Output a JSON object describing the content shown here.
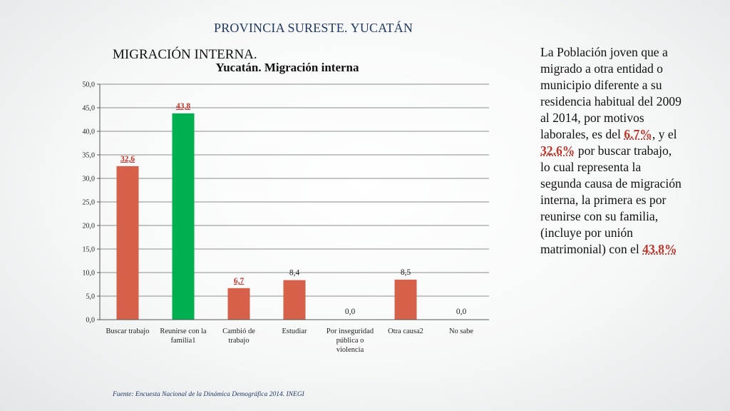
{
  "header": {
    "title": "PROVINCIA SURESTE. YUCATÁN"
  },
  "section": {
    "title": "MIGRACIÓN INTERNA."
  },
  "side_text": {
    "part1": "La Población joven que a migrado a otra entidad o municipio diferente a su residencia habitual del 2009 al 2014,  por motivos laborales, es del ",
    "hl1": "6.7%",
    "part2": ", y el ",
    "hl2": "32.6%",
    "part3": " por buscar trabajo, lo cual representa la segunda causa de migración interna, la primera es por reunirse con su familia, (incluye por unión matrimonial) con el ",
    "hl3": "43.8%"
  },
  "source": "Fuente: Encuesta Nacional de la Dinámica Demográfica 2014. INEGI",
  "colors": {
    "bar_default": "#d5614a",
    "bar_highlight": "#00b050",
    "label_red": "#c0352b",
    "label_dark": "#222222",
    "gridline": "#8c8c8c"
  },
  "chart_data": {
    "type": "bar",
    "title": "Yucatán. Migración interna",
    "categories": [
      [
        "Buscar trabajo"
      ],
      [
        "Reunirse con la",
        "familia1"
      ],
      [
        "Cambió de",
        "trabajo"
      ],
      [
        "Estudiar"
      ],
      [
        "Por inseguridad",
        "pública o",
        "violencia"
      ],
      [
        "Otra causa2"
      ],
      [
        "No sabe"
      ]
    ],
    "values": [
      32.6,
      43.8,
      6.7,
      8.4,
      0.0,
      8.5,
      0.0
    ],
    "value_labels": [
      "32,6",
      "43,8",
      "6,7",
      "8,4",
      "0,0",
      "8,5",
      "0,0"
    ],
    "bar_colors": [
      "default",
      "highlight",
      "default",
      "default",
      "default",
      "default",
      "default"
    ],
    "label_styles": [
      "red",
      "red",
      "red",
      "dark",
      "dark",
      "dark",
      "dark"
    ],
    "ylim": [
      0,
      50
    ],
    "yticks": [
      0,
      5,
      10,
      15,
      20,
      25,
      30,
      35,
      40,
      45,
      50
    ],
    "ytick_labels": [
      "0,0",
      "5,0",
      "10,0",
      "15,0",
      "20,0",
      "25,0",
      "30,0",
      "35,0",
      "40,0",
      "45,0",
      "50,0"
    ],
    "grid": true,
    "legend": "none"
  }
}
